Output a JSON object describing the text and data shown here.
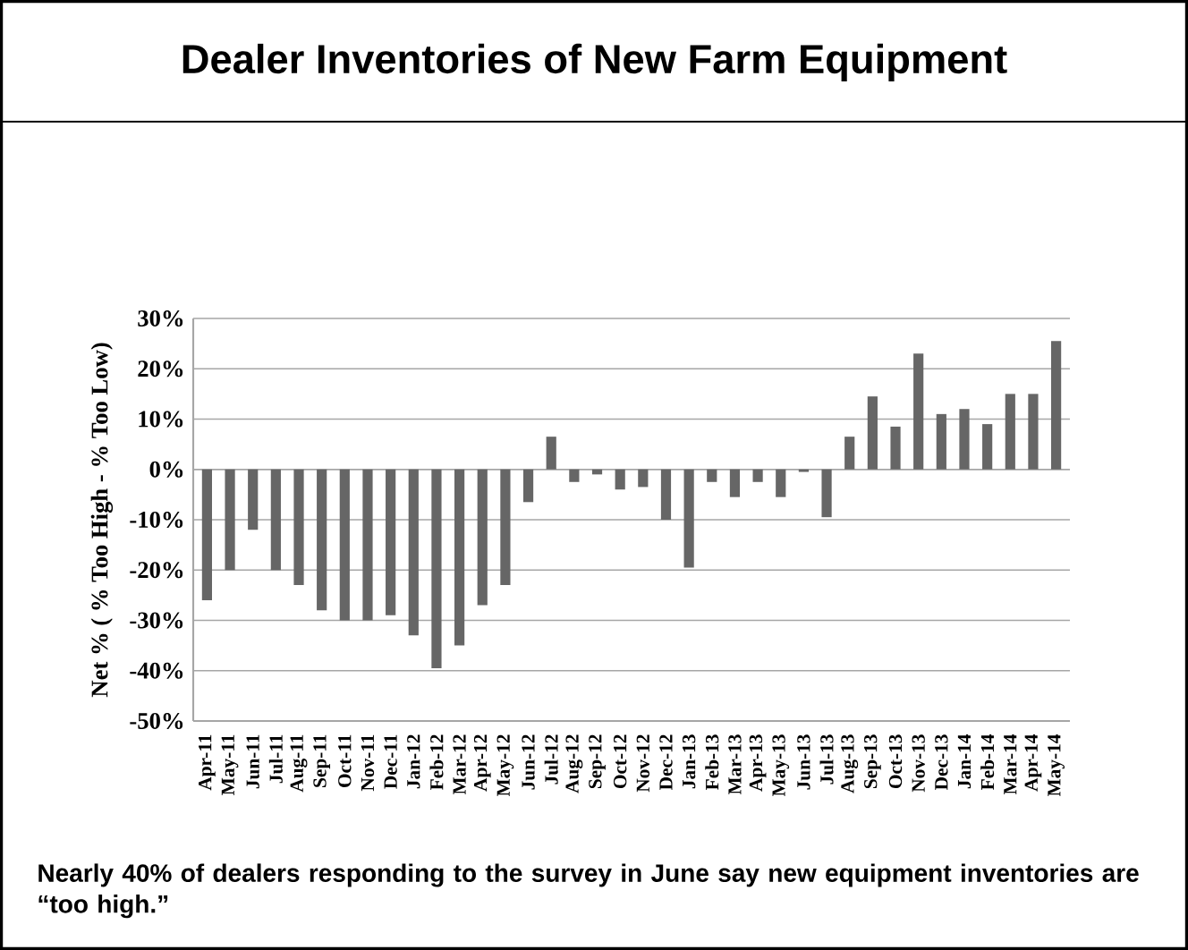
{
  "chart_data": {
    "type": "bar",
    "title": "Dealer Inventories of New Farm Equipment",
    "ylabel": "Net % ( % Too High - % Too Low)",
    "annotations": [
      "Nearly 40% of dealers responding to the survey in June say new equipment inventories are “too high.”"
    ],
    "categories": [
      "Apr-11",
      "May-11",
      "Jun-11",
      "Jul-11",
      "Aug-11",
      "Sep-11",
      "Oct-11",
      "Nov-11",
      "Dec-11",
      "Jan-12",
      "Feb-12",
      "Mar-12",
      "Apr-12",
      "May-12",
      "Jun-12",
      "Jul-12",
      "Aug-12",
      "Sep-12",
      "Oct-12",
      "Nov-12",
      "Dec-12",
      "Jan-13",
      "Feb-13",
      "Mar-13",
      "Apr-13",
      "May-13",
      "Jun-13",
      "Jul-13",
      "Aug-13",
      "Sep-13",
      "Oct-13",
      "Nov-13",
      "Dec-13",
      "Jan-14",
      "Feb-14",
      "Mar-14",
      "Apr-14",
      "May-14"
    ],
    "values": [
      -26,
      -20,
      -12,
      -20,
      -23,
      -28,
      -30,
      -30,
      -29,
      -33,
      -39.5,
      -35,
      -27,
      -23,
      -6.5,
      6.5,
      -2.5,
      -1,
      -4,
      -3.5,
      -10,
      -19.5,
      -2.5,
      -5.5,
      -2.5,
      -5.5,
      -0.5,
      -9.5,
      6.5,
      14.5,
      8.5,
      23,
      11,
      12,
      9,
      15,
      15,
      25.5
    ],
    "color": "#666666",
    "ylim": [
      -50,
      30
    ],
    "yticks": [
      {
        "value": -50,
        "label": "-50%"
      },
      {
        "value": -40,
        "label": "-40%"
      },
      {
        "value": -30,
        "label": "-30%"
      },
      {
        "value": -20,
        "label": "-20%"
      },
      {
        "value": -10,
        "label": "-10%"
      },
      {
        "value": 0,
        "label": "0%"
      },
      {
        "value": 10,
        "label": "10%"
      },
      {
        "value": 20,
        "label": "20%"
      },
      {
        "value": 30,
        "label": "30%"
      }
    ],
    "grid": "y"
  }
}
